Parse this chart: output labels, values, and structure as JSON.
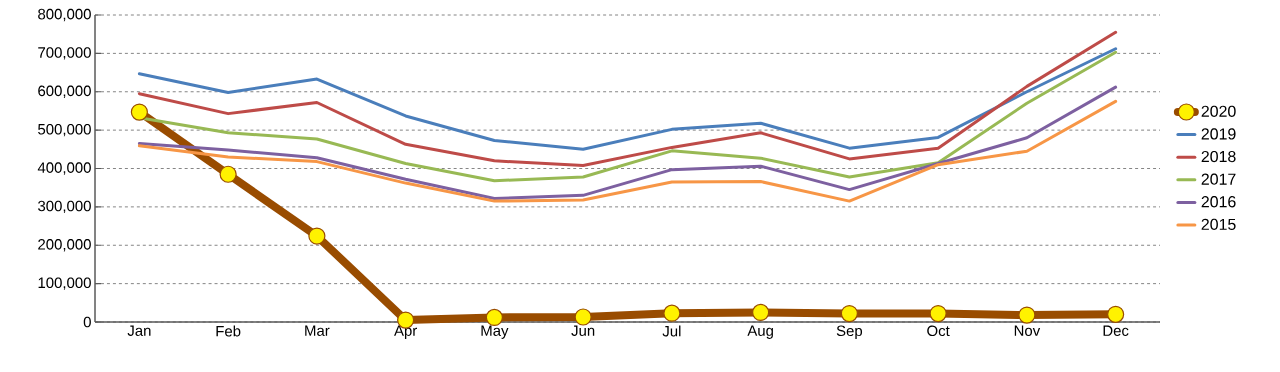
{
  "chart_data": {
    "type": "line",
    "categories": [
      "Jan",
      "Feb",
      "Mar",
      "Apr",
      "May",
      "Jun",
      "Jul",
      "Aug",
      "Sep",
      "Oct",
      "Nov",
      "Dec"
    ],
    "series": [
      {
        "name": "2020",
        "color": "#994c00",
        "marker": "circle",
        "values": [
          547000,
          385000,
          224000,
          5000,
          12000,
          13000,
          23000,
          25000,
          22000,
          22000,
          18000,
          20000
        ]
      },
      {
        "name": "2019",
        "color": "#4a7ebb",
        "values": [
          647000,
          598000,
          633000,
          537000,
          473000,
          450000,
          502000,
          518000,
          453000,
          481000,
          600000,
          712000
        ]
      },
      {
        "name": "2018",
        "color": "#be4b48",
        "values": [
          595000,
          543000,
          572000,
          463000,
          420000,
          408000,
          455000,
          493000,
          425000,
          453000,
          614000,
          755000
        ]
      },
      {
        "name": "2017",
        "color": "#98b954",
        "values": [
          532000,
          493000,
          477000,
          413000,
          368000,
          378000,
          446000,
          427000,
          378000,
          415000,
          570000,
          703000
        ]
      },
      {
        "name": "2016",
        "color": "#7d60a0",
        "values": [
          465000,
          448000,
          428000,
          372000,
          322000,
          330000,
          397000,
          406000,
          345000,
          413000,
          480000,
          612000
        ]
      },
      {
        "name": "2015",
        "color": "#f79646",
        "values": [
          459000,
          430000,
          418000,
          362000,
          315000,
          318000,
          365000,
          366000,
          315000,
          410000,
          445000,
          575000
        ]
      }
    ],
    "ylim": [
      0,
      800000
    ],
    "yticks": [
      {
        "value": 0,
        "label": "0"
      },
      {
        "value": 100000,
        "label": "100,000"
      },
      {
        "value": 200000,
        "label": "200,000"
      },
      {
        "value": 300000,
        "label": "300,000"
      },
      {
        "value": 400000,
        "label": "400,000"
      },
      {
        "value": 500000,
        "label": "500,000"
      },
      {
        "value": 600000,
        "label": "600,000"
      },
      {
        "value": 700000,
        "label": "700,000"
      },
      {
        "value": 800000,
        "label": "800,000"
      }
    ],
    "grid": "y",
    "legend": "right",
    "marker": "none",
    "line_style": "solid"
  }
}
